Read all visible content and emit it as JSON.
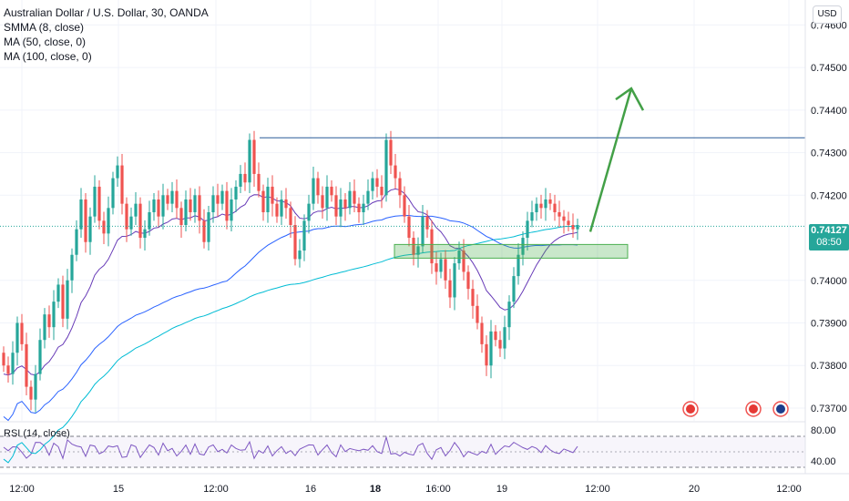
{
  "header": {
    "symbol_title": "Australian Dollar / U.S. Dollar, 30, OANDA",
    "indicators": [
      "SMMA (8, close)",
      "MA (50, close, 0)",
      "MA (100, close, 0)"
    ],
    "currency_button": "USD"
  },
  "last_price": {
    "value": "0.74127",
    "countdown": "08:50",
    "color": "#26a69a"
  },
  "rsi": {
    "label": "RSI (14, close)",
    "levels": [
      "80.00",
      "40.00"
    ]
  },
  "colors": {
    "up": "#26a69a",
    "down": "#ef5350",
    "smma": "#673ab7",
    "ma50": "#2962ff",
    "ma100": "#00bcd4",
    "resistance": "#2a5d99",
    "zone": "#4caf50",
    "arrow": "#43a047",
    "rsi": "#7e57c2"
  },
  "chart_data": {
    "type": "candlestick",
    "title": "Australian Dollar / U.S. Dollar, 30, OANDA",
    "y_axis": {
      "ticks": [
        "0.74600",
        "0.74500",
        "0.74400",
        "0.74300",
        "0.74200",
        "0.74000",
        "0.73900",
        "0.73800",
        "0.73700"
      ],
      "range": [
        0.7367,
        0.7465
      ]
    },
    "x_axis": {
      "ticks": [
        "12:00",
        "15",
        "12:00",
        "16",
        "18",
        "16:00",
        "19",
        "12:00",
        "20",
        "12:00"
      ]
    },
    "closes": [
      0.738,
      0.7378,
      0.7383,
      0.739,
      0.7385,
      0.7375,
      0.7372,
      0.7378,
      0.7386,
      0.7392,
      0.7389,
      0.7395,
      0.7399,
      0.7391,
      0.74,
      0.7406,
      0.7412,
      0.7419,
      0.7409,
      0.7415,
      0.7422,
      0.7414,
      0.7411,
      0.7417,
      0.7424,
      0.7427,
      0.7418,
      0.7412,
      0.7415,
      0.7418,
      0.741,
      0.7412,
      0.7416,
      0.7419,
      0.7415,
      0.742,
      0.7418,
      0.7421,
      0.7417,
      0.7413,
      0.7419,
      0.7416,
      0.742,
      0.7414,
      0.7409,
      0.7416,
      0.742,
      0.7418,
      0.7421,
      0.7414,
      0.7419,
      0.7422,
      0.7425,
      0.7423,
      0.7433,
      0.7425,
      0.7421,
      0.7416,
      0.7422,
      0.7418,
      0.7415,
      0.7419,
      0.7417,
      0.7413,
      0.7405,
      0.7407,
      0.7414,
      0.7418,
      0.7424,
      0.742,
      0.7417,
      0.7422,
      0.742,
      0.7415,
      0.7419,
      0.7417,
      0.7421,
      0.7418,
      0.7416,
      0.7418,
      0.7421,
      0.7424,
      0.7422,
      0.742,
      0.7433,
      0.7427,
      0.7424,
      0.742,
      0.7415,
      0.741,
      0.7406,
      0.7408,
      0.7415,
      0.7412,
      0.7404,
      0.7402,
      0.7405,
      0.74,
      0.7396,
      0.7404,
      0.7407,
      0.7402,
      0.7398,
      0.7394,
      0.739,
      0.7385,
      0.738,
      0.7388,
      0.7386,
      0.7384,
      0.7389,
      0.7395,
      0.7401,
      0.7406,
      0.741,
      0.7414,
      0.7416,
      0.7418,
      0.7417,
      0.7419,
      0.7418,
      0.7416,
      0.7415,
      0.7414,
      0.7413,
      0.7412,
      0.7413
    ],
    "resistance_level": 0.74335,
    "support_zone": [
      0.74065,
      0.7408
    ],
    "projection": {
      "from": 0.74127,
      "to": 0.74455
    }
  }
}
